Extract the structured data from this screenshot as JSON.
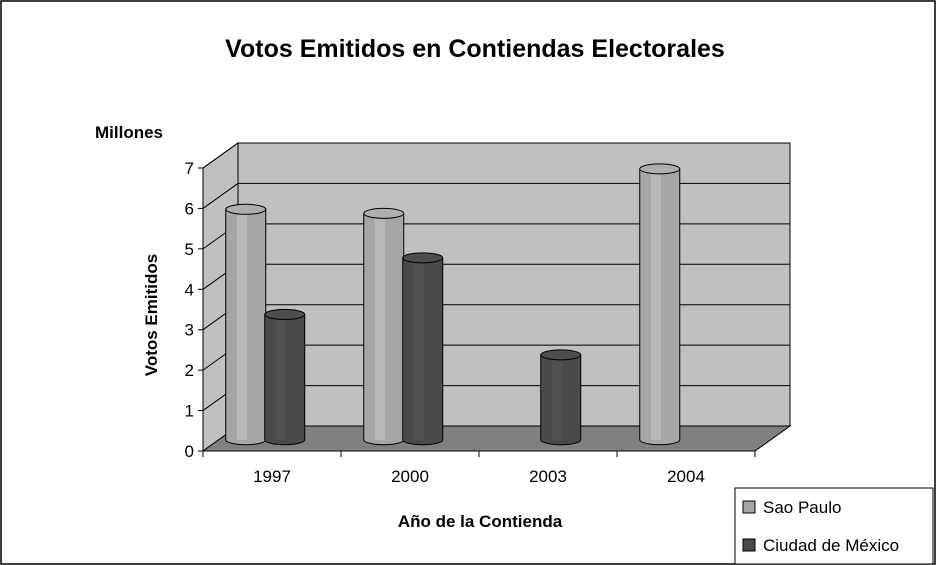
{
  "chart_data": {
    "type": "bar",
    "title": "Votos Emitidos en Contiendas Electorales",
    "units_label": "Millones",
    "ylabel": "Votos Emitidos",
    "xlabel": "Año de la Contienda",
    "categories": [
      "1997",
      "2000",
      "2003",
      "2004"
    ],
    "ylim": [
      0,
      7
    ],
    "yticks": [
      "0",
      "1",
      "2",
      "3",
      "4",
      "5",
      "6",
      "7"
    ],
    "grid": true,
    "legend_position": "bottom-right",
    "series": [
      {
        "name": "Sao Paulo",
        "color": "#a6a6a6",
        "values": [
          5.7,
          5.6,
          null,
          6.7
        ]
      },
      {
        "name": "Ciudad de México",
        "color": "#4a4a4a",
        "values": [
          3.1,
          4.5,
          2.1,
          null
        ]
      }
    ],
    "colors": {
      "wall": "#c0c0c0",
      "floor": "#808080",
      "grid": "#000000"
    }
  }
}
